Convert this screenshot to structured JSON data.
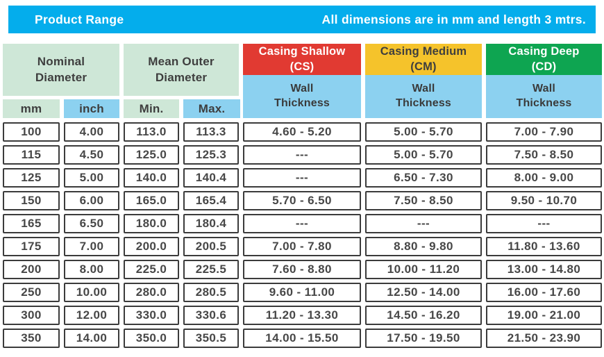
{
  "topbar": {
    "title": "Product Range",
    "note": "All dimensions are in mm and length 3 mtrs."
  },
  "colors": {
    "topbar_blue": "#04ADEC",
    "light_green": "#CEE7D7",
    "light_blue": "#8CD1F0",
    "casing_shallow_red": "#E13A32",
    "casing_medium_yellow": "#F5C32B",
    "casing_deep_green": "#0EA551",
    "cell_border": "#3B3B3B",
    "text_dark": "#3E3E3E"
  },
  "table": {
    "groups": {
      "nominal": {
        "title": "Nominal Diameter",
        "sub1": "mm",
        "sub2": "inch"
      },
      "mean_outer": {
        "title": "Mean Outer Diameter",
        "sub1": "Min.",
        "sub2": "Max."
      },
      "cs": {
        "title": "Casing Shallow (CS)",
        "sub": "Wall Thickness"
      },
      "cm": {
        "title": "Casing Medium (CM)",
        "sub": "Wall Thickness"
      },
      "cd": {
        "title": "Casing Deep (CD)",
        "sub": "Wall Thickness"
      }
    },
    "rows": [
      {
        "mm": "100",
        "inch": "4.00",
        "min": "113.0",
        "max": "113.3",
        "cs": "4.60 - 5.20",
        "cm": "5.00 - 5.70",
        "cd": "7.00 - 7.90"
      },
      {
        "mm": "115",
        "inch": "4.50",
        "min": "125.0",
        "max": "125.3",
        "cs": "---",
        "cm": "5.00 - 5.70",
        "cd": "7.50 - 8.50"
      },
      {
        "mm": "125",
        "inch": "5.00",
        "min": "140.0",
        "max": "140.4",
        "cs": "---",
        "cm": "6.50 - 7.30",
        "cd": "8.00 - 9.00"
      },
      {
        "mm": "150",
        "inch": "6.00",
        "min": "165.0",
        "max": "165.4",
        "cs": "5.70 - 6.50",
        "cm": "7.50 - 8.50",
        "cd": "9.50 - 10.70"
      },
      {
        "mm": "165",
        "inch": "6.50",
        "min": "180.0",
        "max": "180.4",
        "cs": "---",
        "cm": "---",
        "cd": "---"
      },
      {
        "mm": "175",
        "inch": "7.00",
        "min": "200.0",
        "max": "200.5",
        "cs": "7.00 - 7.80",
        "cm": "8.80 - 9.80",
        "cd": "11.80 - 13.60"
      },
      {
        "mm": "200",
        "inch": "8.00",
        "min": "225.0",
        "max": "225.5",
        "cs": "7.60 - 8.80",
        "cm": "10.00 - 11.20",
        "cd": "13.00 - 14.80"
      },
      {
        "mm": "250",
        "inch": "10.00",
        "min": "280.0",
        "max": "280.5",
        "cs": "9.60 - 11.00",
        "cm": "12.50 - 14.00",
        "cd": "16.00 - 17.60"
      },
      {
        "mm": "300",
        "inch": "12.00",
        "min": "330.0",
        "max": "330.6",
        "cs": "11.20 - 13.30",
        "cm": "14.50 - 16.20",
        "cd": "19.00 - 21.00"
      },
      {
        "mm": "350",
        "inch": "14.00",
        "min": "350.0",
        "max": "350.5",
        "cs": "14.00 - 15.50",
        "cm": "17.50 - 19.50",
        "cd": "21.50 - 23.90"
      }
    ]
  }
}
